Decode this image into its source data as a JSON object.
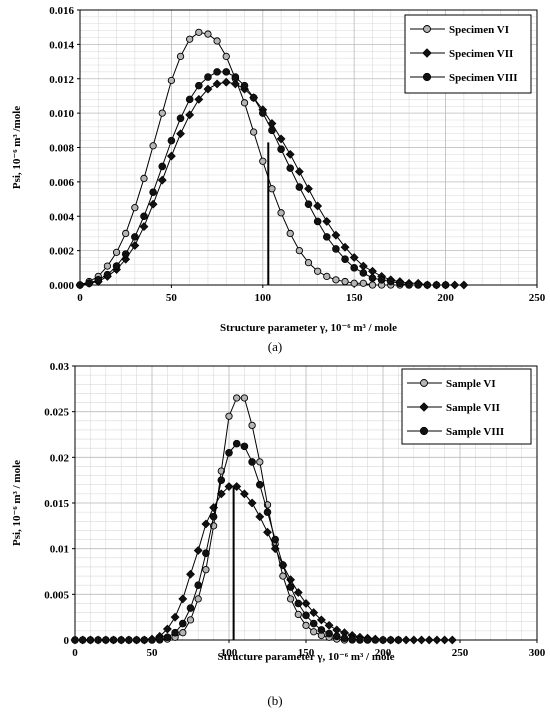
{
  "chart_data": [
    {
      "type": "line",
      "caption": "(a)",
      "xlabel": "Structure parameter γ, 10⁻⁶ m³ / mole",
      "ylabel": "Psi, 10⁻⁶ m³ /mole",
      "xlim": [
        0,
        250
      ],
      "ylim": [
        0,
        0.016
      ],
      "xticks": [
        "0",
        "50",
        "100",
        "150",
        "200",
        "250"
      ],
      "yticks": [
        "0.000",
        "0.002",
        "0.004",
        "0.006",
        "0.008",
        "0.010",
        "0.012",
        "0.014",
        "0.016"
      ],
      "grid": true,
      "legend_position": "top-right",
      "vline_x": 103,
      "series": [
        {
          "name": "Specimen VI",
          "marker": "circle-gray",
          "x": [
            0,
            5,
            10,
            15,
            20,
            25,
            30,
            35,
            40,
            45,
            50,
            55,
            60,
            65,
            70,
            75,
            80,
            85,
            90,
            95,
            100,
            105,
            110,
            115,
            120,
            125,
            130,
            135,
            140,
            145,
            150,
            155,
            160,
            165,
            170,
            175
          ],
          "y": [
            0,
            0.0002,
            0.0005,
            0.0011,
            0.0019,
            0.003,
            0.0045,
            0.0062,
            0.0081,
            0.01,
            0.0119,
            0.0133,
            0.0143,
            0.0147,
            0.0146,
            0.0142,
            0.0133,
            0.012,
            0.0106,
            0.0089,
            0.0072,
            0.0056,
            0.0042,
            0.003,
            0.002,
            0.0013,
            0.0008,
            0.0005,
            0.0003,
            0.0002,
            0.0001,
            0.0001,
            0,
            0,
            0,
            0
          ]
        },
        {
          "name": "Specimen VII",
          "marker": "diamond",
          "x": [
            0,
            5,
            10,
            15,
            20,
            25,
            30,
            35,
            40,
            45,
            50,
            55,
            60,
            65,
            70,
            75,
            80,
            85,
            90,
            95,
            100,
            105,
            110,
            115,
            120,
            125,
            130,
            135,
            140,
            145,
            150,
            155,
            160,
            165,
            170,
            175,
            180,
            185,
            190,
            195,
            200,
            205,
            210
          ],
          "y": [
            0,
            0.0001,
            0.0002,
            0.0005,
            0.0009,
            0.0015,
            0.0023,
            0.0034,
            0.0047,
            0.0061,
            0.0075,
            0.0088,
            0.0099,
            0.0108,
            0.0114,
            0.0117,
            0.0118,
            0.0117,
            0.0114,
            0.0109,
            0.0102,
            0.0094,
            0.0085,
            0.0076,
            0.0066,
            0.0056,
            0.0046,
            0.0037,
            0.0029,
            0.0022,
            0.0016,
            0.0011,
            0.0008,
            0.0005,
            0.0003,
            0.0002,
            0.0001,
            0.0001,
            0,
            0,
            0,
            0,
            0
          ]
        },
        {
          "name": "Specimen VIII",
          "marker": "circle-black",
          "x": [
            0,
            5,
            10,
            15,
            20,
            25,
            30,
            35,
            40,
            45,
            50,
            55,
            60,
            65,
            70,
            75,
            80,
            85,
            90,
            95,
            100,
            105,
            110,
            115,
            120,
            125,
            130,
            135,
            140,
            145,
            150,
            155,
            160,
            165,
            170,
            175,
            180,
            185,
            190,
            195,
            200
          ],
          "y": [
            0,
            0.0001,
            0.0003,
            0.0006,
            0.0011,
            0.0018,
            0.0028,
            0.004,
            0.0054,
            0.0069,
            0.0084,
            0.0097,
            0.0108,
            0.0116,
            0.0121,
            0.0124,
            0.0124,
            0.0121,
            0.0116,
            0.0109,
            0.01,
            0.009,
            0.0079,
            0.0068,
            0.0057,
            0.0047,
            0.0037,
            0.0028,
            0.0021,
            0.0015,
            0.001,
            0.0007,
            0.0004,
            0.0003,
            0.0002,
            0.0001,
            0,
            0,
            0,
            0,
            0
          ]
        }
      ]
    },
    {
      "type": "line",
      "caption": "(b)",
      "xlabel": "Structure parameter γ, 10⁻⁶ m³ / mole",
      "ylabel": "Psi, 10⁻⁶ m³ / mole",
      "xlim": [
        0,
        300
      ],
      "ylim": [
        0,
        0.03
      ],
      "xticks": [
        "0",
        "50",
        "100",
        "150",
        "200",
        "250",
        "300"
      ],
      "yticks": [
        "0",
        "0.005",
        "0.01",
        "0.015",
        "0.02",
        "0.025",
        "0.03"
      ],
      "grid": true,
      "legend_position": "top-right",
      "vline_x": 103,
      "series": [
        {
          "name": "Sample VI",
          "marker": "circle-gray",
          "x": [
            0,
            5,
            10,
            15,
            20,
            25,
            30,
            35,
            40,
            45,
            50,
            55,
            60,
            65,
            70,
            75,
            80,
            85,
            90,
            95,
            100,
            105,
            110,
            115,
            120,
            125,
            130,
            135,
            140,
            145,
            150,
            155,
            160,
            165,
            170,
            175,
            180,
            185,
            190
          ],
          "y": [
            0,
            0,
            0,
            0,
            0,
            0,
            0,
            0,
            0,
            0,
            0,
            0,
            0.0001,
            0.0003,
            0.0008,
            0.0022,
            0.0045,
            0.0077,
            0.0125,
            0.0185,
            0.0245,
            0.0265,
            0.0265,
            0.0235,
            0.0195,
            0.0148,
            0.0105,
            0.007,
            0.0045,
            0.0028,
            0.0016,
            0.0009,
            0.0005,
            0.0003,
            0.0001,
            0,
            0,
            0,
            0
          ]
        },
        {
          "name": "Sample VII",
          "marker": "diamond",
          "x": [
            0,
            5,
            10,
            15,
            20,
            25,
            30,
            35,
            40,
            45,
            50,
            55,
            60,
            65,
            70,
            75,
            80,
            85,
            90,
            95,
            100,
            105,
            110,
            115,
            120,
            125,
            130,
            135,
            140,
            145,
            150,
            155,
            160,
            165,
            170,
            175,
            180,
            185,
            190,
            195,
            200,
            205,
            210,
            215,
            220,
            225,
            230,
            235,
            240,
            245
          ],
          "y": [
            0,
            0,
            0,
            0,
            0,
            0,
            0,
            0,
            0,
            0,
            0.0001,
            0.0004,
            0.0012,
            0.0025,
            0.0045,
            0.0072,
            0.0098,
            0.0127,
            0.0145,
            0.016,
            0.0168,
            0.0168,
            0.016,
            0.015,
            0.0135,
            0.0118,
            0.01,
            0.0082,
            0.0066,
            0.0052,
            0.004,
            0.003,
            0.0022,
            0.0016,
            0.0011,
            0.0008,
            0.0005,
            0.0003,
            0.0002,
            0.0001,
            0,
            0,
            0,
            0,
            0,
            0,
            0,
            0,
            0,
            0
          ]
        },
        {
          "name": "Sample VIII",
          "marker": "circle-black",
          "x": [
            0,
            5,
            10,
            15,
            20,
            25,
            30,
            35,
            40,
            45,
            50,
            55,
            60,
            65,
            70,
            75,
            80,
            85,
            90,
            95,
            100,
            105,
            110,
            115,
            120,
            125,
            130,
            135,
            140,
            145,
            150,
            155,
            160,
            165,
            170,
            175,
            180,
            185,
            190,
            195,
            200,
            205,
            210
          ],
          "y": [
            0,
            0,
            0,
            0,
            0,
            0,
            0,
            0,
            0,
            0,
            0,
            0.0001,
            0.0003,
            0.0008,
            0.0018,
            0.0035,
            0.006,
            0.0095,
            0.0135,
            0.0175,
            0.0205,
            0.0215,
            0.0212,
            0.0195,
            0.017,
            0.014,
            0.011,
            0.0082,
            0.0058,
            0.004,
            0.0027,
            0.0018,
            0.0011,
            0.0007,
            0.0004,
            0.0002,
            0.0001,
            0,
            0,
            0,
            0,
            0,
            0
          ]
        }
      ]
    }
  ]
}
